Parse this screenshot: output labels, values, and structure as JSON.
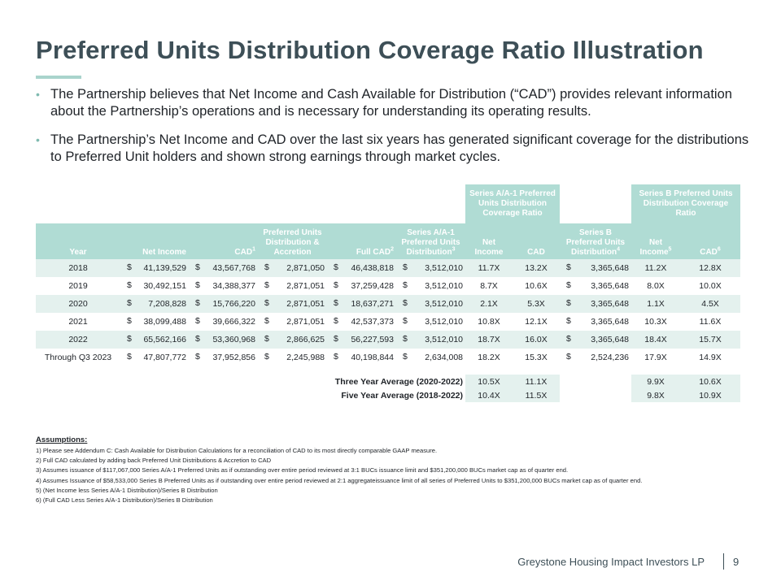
{
  "title": "Preferred Units Distribution Coverage Ratio Illustration",
  "bullets": [
    "The Partnership believes that Net Income and Cash Available for Distribution (“CAD”) provides relevant information about the Partnership’s operations and is necessary for understanding its operating results.",
    "The Partnership’s Net Income and CAD over the last six years has generated significant coverage for the distributions to Preferred Unit holders and shown strong earnings through market cycles."
  ],
  "bullet_glyph": "•",
  "table": {
    "group_headers": {
      "series_a": "Series A/A-1 Preferred Units Distribution Coverage Ratio",
      "series_b": "Series B Preferred Units Distribution Coverage Ratio"
    },
    "columns": {
      "year": "Year",
      "net_income": "Net Income",
      "cad": "CAD",
      "cad_sup": "1",
      "pref_dist": "Preferred Units Distribution & Accretion",
      "full_cad": "Full CAD",
      "full_cad_sup": "2",
      "series_a_dist": "Series A/A-1 Preferred Units Distribution",
      "series_a_dist_sup": "3",
      "a_net_income": "Net Income",
      "a_cad": "CAD",
      "series_b_dist": "Series B Preferred Units Distribution",
      "series_b_dist_sup": "4",
      "b_net_income": "Net Income",
      "b_net_income_sup": "5",
      "b_cad": "CAD",
      "b_cad_sup": "6"
    },
    "currency": "$",
    "rows": [
      {
        "year": "2018",
        "net_income": "41,139,529",
        "cad": "43,567,768",
        "pref_dist": "2,871,050",
        "full_cad": "46,438,818",
        "series_a_dist": "3,512,010",
        "a_ni": "11.7X",
        "a_cad": "13.2X",
        "series_b_dist": "3,365,648",
        "b_ni": "11.2X",
        "b_cad": "12.8X"
      },
      {
        "year": "2019",
        "net_income": "30,492,151",
        "cad": "34,388,377",
        "pref_dist": "2,871,051",
        "full_cad": "37,259,428",
        "series_a_dist": "3,512,010",
        "a_ni": "8.7X",
        "a_cad": "10.6X",
        "series_b_dist": "3,365,648",
        "b_ni": "8.0X",
        "b_cad": "10.0X"
      },
      {
        "year": "2020",
        "net_income": "7,208,828",
        "cad": "15,766,220",
        "pref_dist": "2,871,051",
        "full_cad": "18,637,271",
        "series_a_dist": "3,512,010",
        "a_ni": "2.1X",
        "a_cad": "5.3X",
        "series_b_dist": "3,365,648",
        "b_ni": "1.1X",
        "b_cad": "4.5X"
      },
      {
        "year": "2021",
        "net_income": "38,099,488",
        "cad": "39,666,322",
        "pref_dist": "2,871,051",
        "full_cad": "42,537,373",
        "series_a_dist": "3,512,010",
        "a_ni": "10.8X",
        "a_cad": "12.1X",
        "series_b_dist": "3,365,648",
        "b_ni": "10.3X",
        "b_cad": "11.6X"
      },
      {
        "year": "2022",
        "net_income": "65,562,166",
        "cad": "53,360,968",
        "pref_dist": "2,866,625",
        "full_cad": "56,227,593",
        "series_a_dist": "3,512,010",
        "a_ni": "18.7X",
        "a_cad": "16.0X",
        "series_b_dist": "3,365,648",
        "b_ni": "18.4X",
        "b_cad": "15.7X"
      },
      {
        "year": "Through Q3 2023",
        "net_income": "47,807,772",
        "cad": "37,952,856",
        "pref_dist": "2,245,988",
        "full_cad": "40,198,844",
        "series_a_dist": "2,634,008",
        "a_ni": "18.2X",
        "a_cad": "15.3X",
        "series_b_dist": "2,524,236",
        "b_ni": "17.9X",
        "b_cad": "14.9X"
      }
    ],
    "averages": [
      {
        "label": "Three Year Average (2020-2022)",
        "a_ni": "10.5X",
        "a_cad": "11.1X",
        "b_ni": "9.9X",
        "b_cad": "10.6X"
      },
      {
        "label": "Five Year Average (2018-2022)",
        "a_ni": "10.4X",
        "a_cad": "11.5X",
        "b_ni": "9.8X",
        "b_cad": "10.9X"
      }
    ]
  },
  "assumptions": {
    "heading": "Assumptions:",
    "items": [
      "1) Please see Addendum C: Cash Available for Distribution Calculations for a reconciliation of CAD to its most directly comparable GAAP measure.",
      "2) Full CAD calculated by adding back Preferred Unit Distributions & Accretion to CAD",
      "3) Assumes issuance of $117,067,000 Series A/A-1 Preferred Units as if outstanding over entire period reviewed at 3:1 BUCs issuance limit and $351,200,000 BUCs market cap as of quarter end.",
      "4) Assumes Issuance of $58,533,000 Series B Preferred Units as if outstanding over entire period reviewed at 2:1 aggregateissuance limit of all series of Preferred Units to $351,200,000 BUCs market cap as of quarter end.",
      "5) (Net Income less Series A/A-1 Distribution)/Series B Distribution",
      "6) (Full CAD Less Series A/A-1 Distribution)/Series B Distribution"
    ]
  },
  "footer": {
    "company": "Greystone Housing Impact Investors LP",
    "page": "9"
  },
  "colors": {
    "title": "#3d4f57",
    "accent": "#a9d4cc",
    "header_fill": "#b0dcd4",
    "row_fill": "#e4f1ee"
  }
}
